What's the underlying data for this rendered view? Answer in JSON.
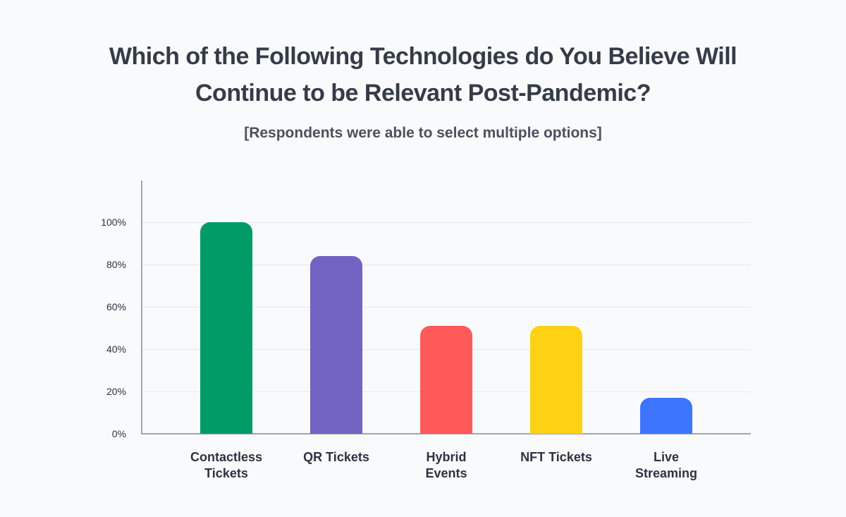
{
  "chart_data": {
    "type": "bar",
    "title": "Which of the Following Technologies do You Believe Will Continue to be Relevant Post-Pandemic?",
    "title_lines": [
      "Which of the Following Technologies do You Believe Will",
      "Continue to be Relevant Post-Pandemic?"
    ],
    "subtitle": "[Respondents were able to select multiple options]",
    "categories": [
      "Contactless Tickets",
      "QR Tickets",
      "Hybrid Events",
      "NFT Tickets",
      "Live Streaming"
    ],
    "category_lines": [
      [
        "Contactless",
        "Tickets"
      ],
      [
        "QR Tickets"
      ],
      [
        "Hybrid",
        "Events"
      ],
      [
        "NFT Tickets"
      ],
      [
        "Live",
        "Streaming"
      ]
    ],
    "values": [
      100,
      84,
      51,
      51,
      17
    ],
    "colors": [
      "#019b67",
      "#7263c3",
      "#ff5a5a",
      "#ffd114",
      "#3e75ff"
    ],
    "xlabel": "",
    "ylabel": "",
    "ylim": [
      0,
      100
    ],
    "yticks": [
      "0%",
      "20%",
      "40%",
      "60%",
      "80%",
      "100%"
    ],
    "grid": true,
    "legend": "none"
  }
}
